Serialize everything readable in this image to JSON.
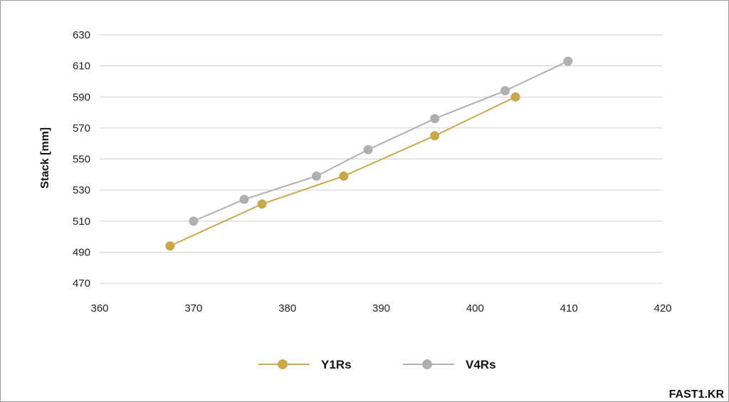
{
  "watermark": "FAST1.KR",
  "chart_data": {
    "type": "line",
    "title": "",
    "xlabel": "",
    "ylabel": "Stack [mm]",
    "xlim": [
      360,
      420
    ],
    "ylim": [
      470,
      630
    ],
    "xticks": [
      360,
      370,
      380,
      390,
      400,
      410,
      420
    ],
    "yticks": [
      470,
      490,
      510,
      530,
      550,
      570,
      590,
      610,
      630
    ],
    "grid": "horizontal",
    "legend": "bottom-center",
    "series": [
      {
        "name": "Y1Rs",
        "color": "#c9a84c",
        "x": [
          367.5,
          377.3,
          386.0,
          395.7,
          404.3
        ],
        "y": [
          494,
          521,
          539,
          565,
          590
        ]
      },
      {
        "name": "V4Rs",
        "color": "#b0b0b0",
        "x": [
          370.0,
          375.4,
          383.1,
          388.6,
          395.7,
          403.2,
          409.9
        ],
        "y": [
          510,
          524,
          539,
          556,
          576,
          594,
          613
        ]
      }
    ]
  }
}
